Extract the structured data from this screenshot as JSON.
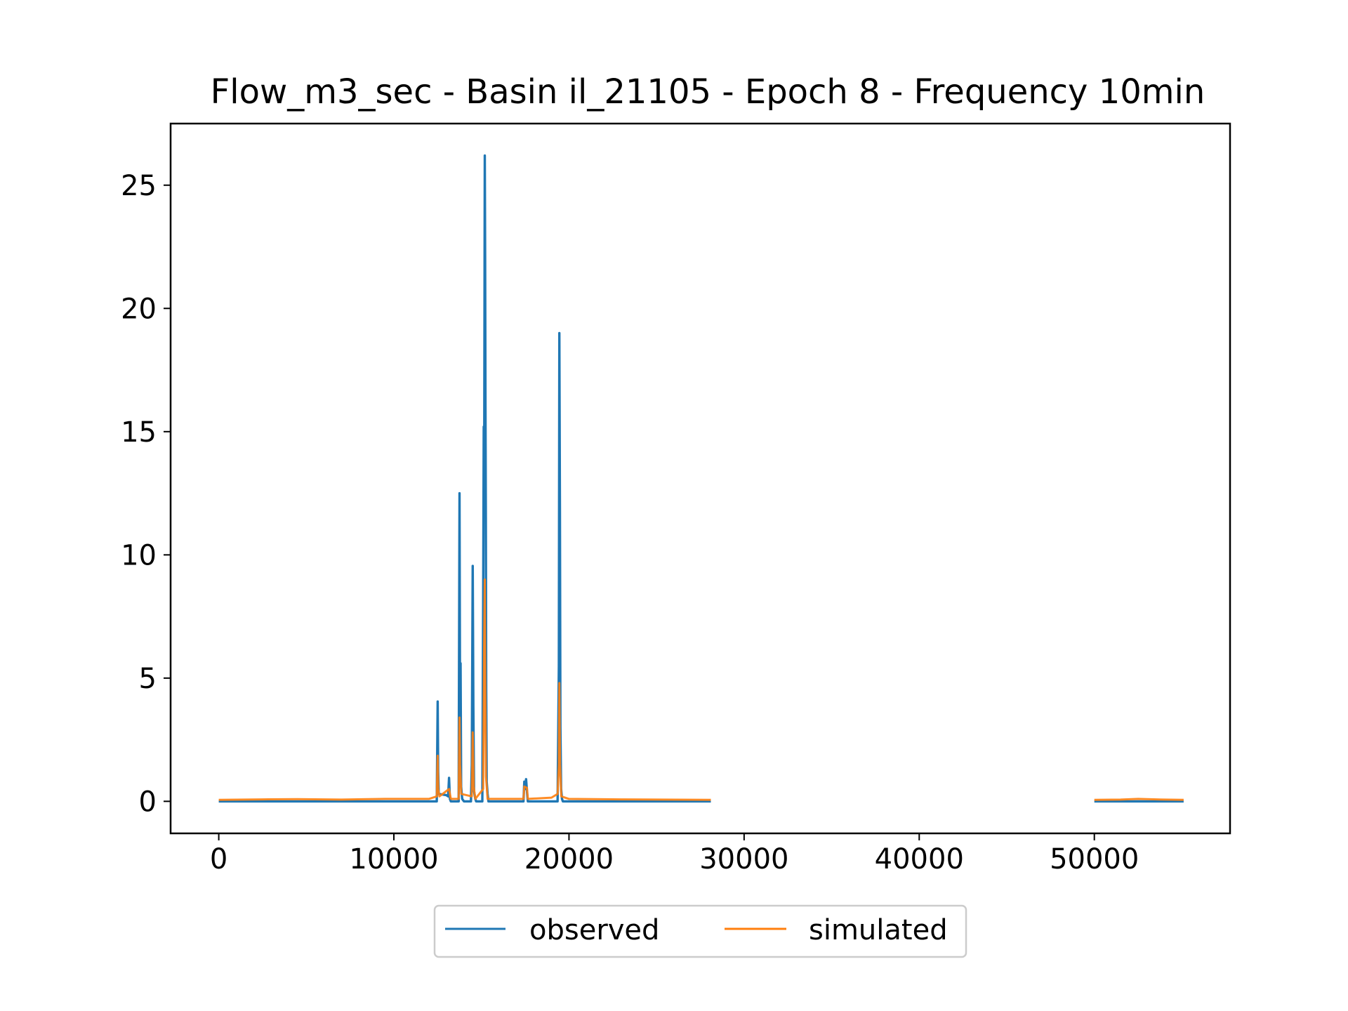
{
  "chart_data": {
    "type": "line",
    "title": "Flow_m3_sec - Basin il_21105 - Epoch 8 - Frequency 10min",
    "xlabel": "",
    "ylabel": "",
    "xlim": [
      -2750,
      57750
    ],
    "ylim": [
      -1.3,
      27.5
    ],
    "xticks": [
      0,
      10000,
      20000,
      30000,
      40000,
      50000
    ],
    "xtick_labels": [
      "0",
      "10000",
      "20000",
      "30000",
      "40000",
      "50000"
    ],
    "yticks": [
      0,
      5,
      10,
      15,
      20,
      25
    ],
    "ytick_labels": [
      "0",
      "5",
      "10",
      "15",
      "20",
      "25"
    ],
    "grid": false,
    "legend_position": "bottom-center, below axes",
    "series": [
      {
        "name": "observed",
        "color": "#1f77b4",
        "segments": [
          [
            [
              0,
              0
            ],
            [
              12450,
              0
            ],
            [
              12500,
              4.05
            ],
            [
              12530,
              1.2
            ],
            [
              12560,
              0.3
            ],
            [
              13000,
              0.25
            ],
            [
              13100,
              0.2
            ],
            [
              13150,
              0.95
            ],
            [
              13200,
              0.1
            ],
            [
              13250,
              0
            ],
            [
              13700,
              0
            ],
            [
              13750,
              12.5
            ],
            [
              13780,
              3.0
            ],
            [
              13810,
              5.6
            ],
            [
              13840,
              0.6
            ],
            [
              13900,
              0.1
            ],
            [
              14000,
              0
            ],
            [
              14400,
              0
            ],
            [
              14450,
              1.5
            ],
            [
              14500,
              9.55
            ],
            [
              14540,
              3.9
            ],
            [
              14580,
              0.4
            ],
            [
              14650,
              0.1
            ],
            [
              14700,
              0
            ],
            [
              15050,
              0
            ],
            [
              15100,
              8.0
            ],
            [
              15130,
              15.2
            ],
            [
              15160,
              14.0
            ],
            [
              15190,
              26.2
            ],
            [
              15210,
              22.0
            ],
            [
              15230,
              16.0
            ],
            [
              15250,
              11.5
            ],
            [
              15270,
              4.5
            ],
            [
              15300,
              0.8
            ],
            [
              15350,
              0.3
            ],
            [
              15400,
              0
            ],
            [
              17400,
              0
            ],
            [
              17450,
              0.8
            ],
            [
              17500,
              0.5
            ],
            [
              17550,
              0.9
            ],
            [
              17600,
              0.4
            ],
            [
              17650,
              0
            ],
            [
              19350,
              0
            ],
            [
              19420,
              5.5
            ],
            [
              19450,
              19.0
            ],
            [
              19480,
              12.0
            ],
            [
              19510,
              3.0
            ],
            [
              19550,
              0.5
            ],
            [
              19600,
              0.1
            ],
            [
              19650,
              0
            ],
            [
              28100,
              0
            ]
          ],
          [
            [
              50000,
              0
            ],
            [
              55100,
              0
            ]
          ]
        ]
      },
      {
        "name": "simulated",
        "color": "#ff7f0e",
        "segments": [
          [
            [
              0,
              0.06
            ],
            [
              1500,
              0.07
            ],
            [
              2500,
              0.08
            ],
            [
              4500,
              0.09
            ],
            [
              7000,
              0.07
            ],
            [
              9500,
              0.1
            ],
            [
              12000,
              0.1
            ],
            [
              12450,
              0.2
            ],
            [
              12500,
              1.85
            ],
            [
              12530,
              0.5
            ],
            [
              12600,
              0.2
            ],
            [
              13150,
              0.5
            ],
            [
              13250,
              0.1
            ],
            [
              13700,
              0.1
            ],
            [
              13750,
              3.4
            ],
            [
              13780,
              1.5
            ],
            [
              13850,
              0.3
            ],
            [
              14450,
              0.2
            ],
            [
              14500,
              2.8
            ],
            [
              14560,
              0.6
            ],
            [
              14650,
              0.1
            ],
            [
              15100,
              0.5
            ],
            [
              15150,
              6.2
            ],
            [
              15190,
              9.0
            ],
            [
              15220,
              5.0
            ],
            [
              15260,
              1.0
            ],
            [
              15350,
              0.1
            ],
            [
              17400,
              0.1
            ],
            [
              17450,
              0.6
            ],
            [
              17600,
              0.55
            ],
            [
              17650,
              0.1
            ],
            [
              19000,
              0.15
            ],
            [
              19350,
              0.3
            ],
            [
              19420,
              1.5
            ],
            [
              19450,
              4.8
            ],
            [
              19490,
              1.5
            ],
            [
              19560,
              0.2
            ],
            [
              20000,
              0.1
            ],
            [
              23000,
              0.08
            ],
            [
              28100,
              0.06
            ]
          ],
          [
            [
              50000,
              0.06
            ],
            [
              51500,
              0.07
            ],
            [
              52500,
              0.1
            ],
            [
              54000,
              0.07
            ],
            [
              55100,
              0.06
            ]
          ]
        ]
      }
    ]
  }
}
